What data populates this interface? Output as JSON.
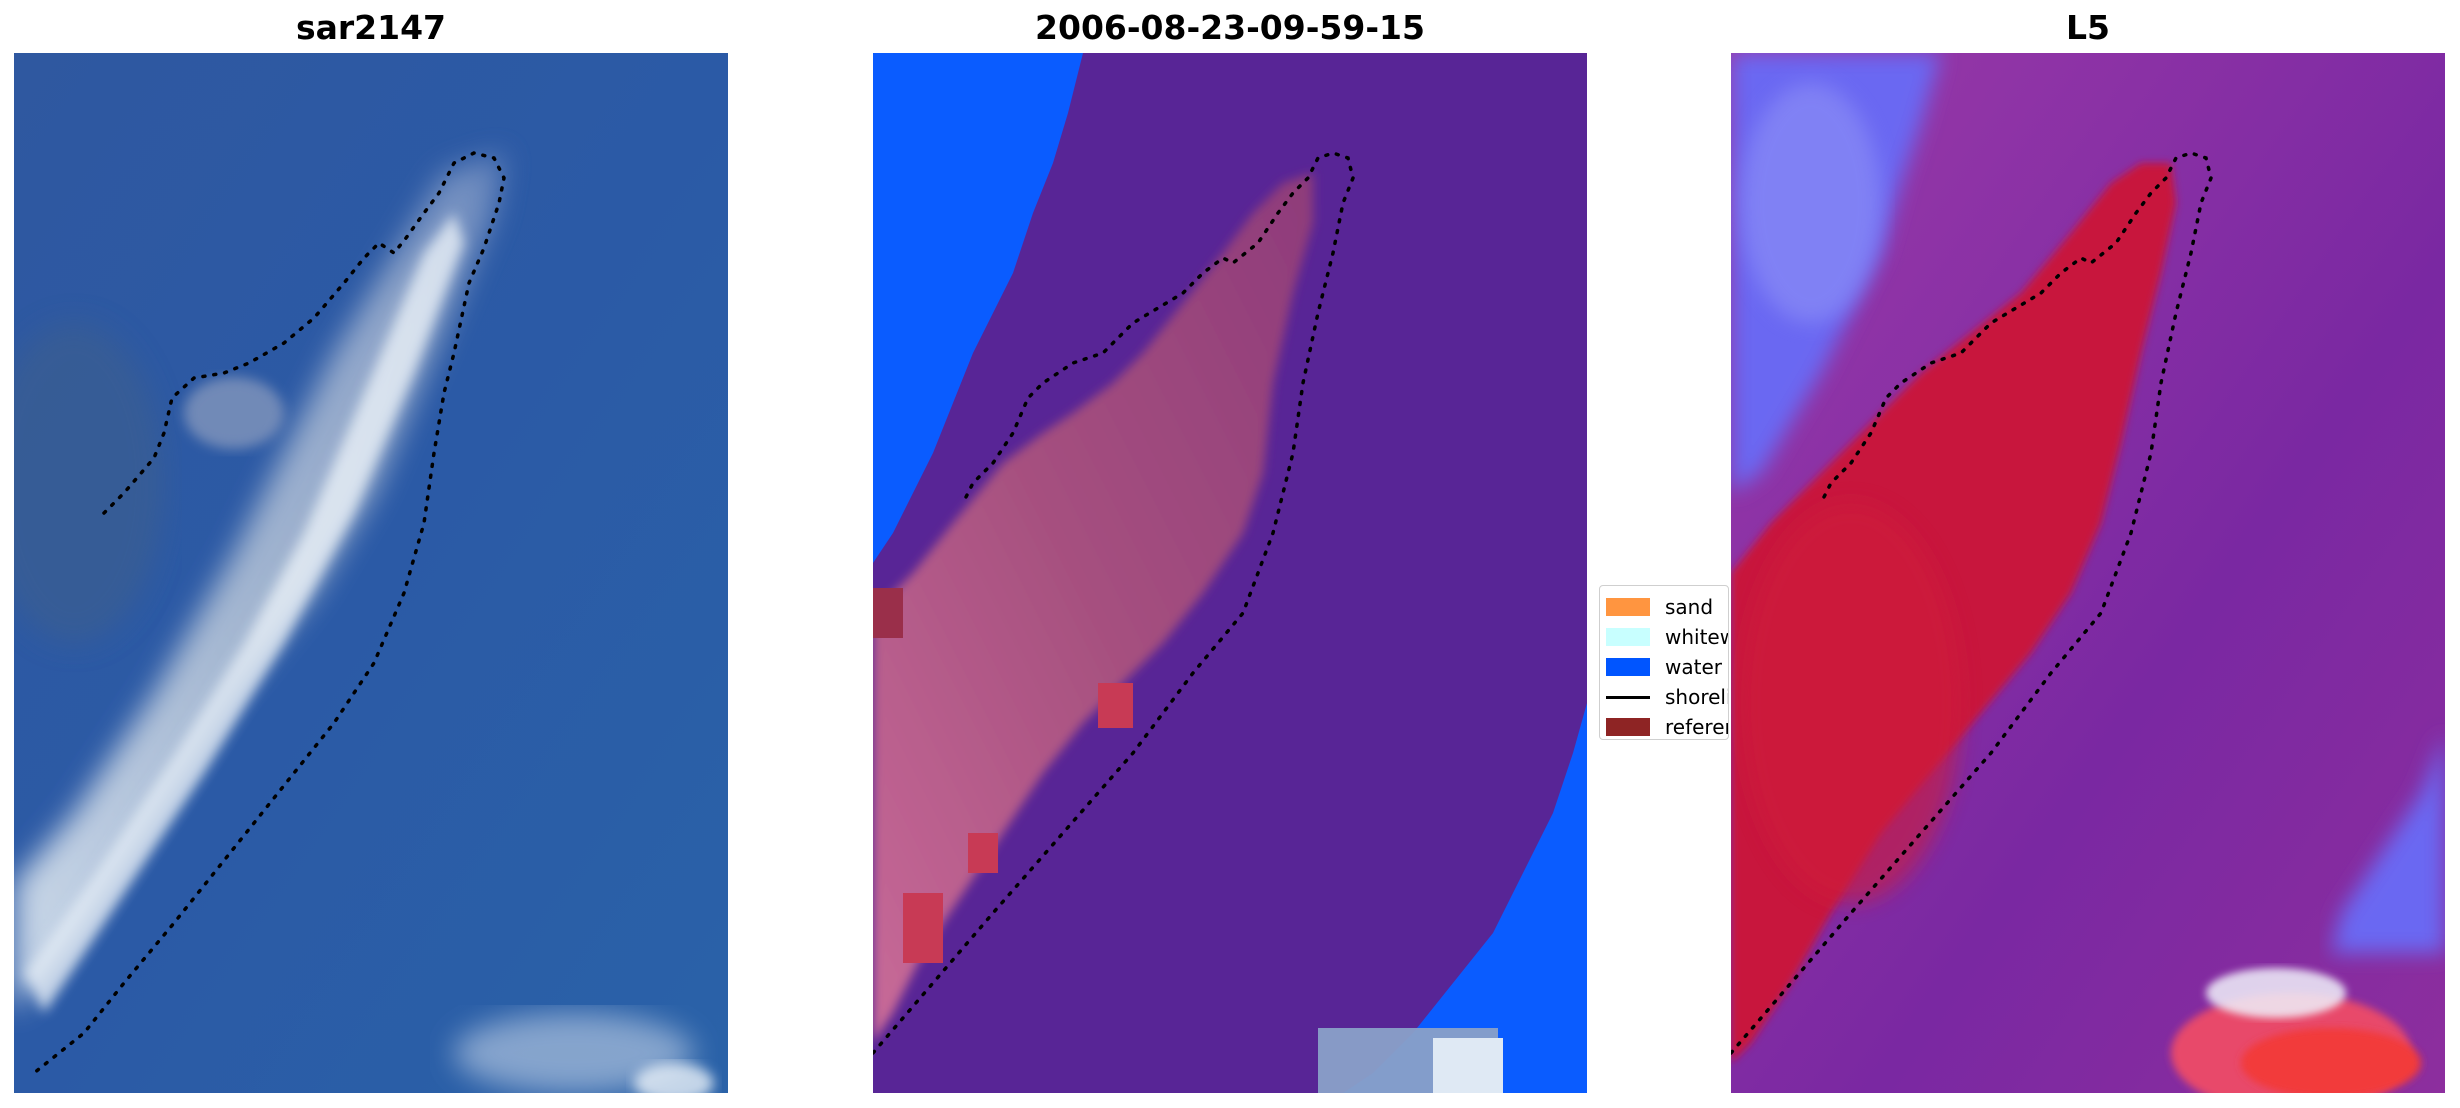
{
  "panels": [
    {
      "title": "sar2147"
    },
    {
      "title": "2006-08-23-09-59-15"
    },
    {
      "title": "L5"
    }
  ],
  "legend": {
    "items": [
      {
        "label": "sand",
        "kind": "patch",
        "color": "#ff9540"
      },
      {
        "label": "whitewater",
        "kind": "patch",
        "color": "#c8ffff"
      },
      {
        "label": "water",
        "kind": "patch",
        "color": "#0055ff"
      },
      {
        "label": "shoreline",
        "kind": "line",
        "color": "#000000"
      },
      {
        "label": "reference",
        "kind": "patch",
        "color": "#8e2424"
      }
    ]
  },
  "colors": {
    "water_class": "#0a5cff",
    "land_class": "#582596",
    "rgb_water": "#2c5da3",
    "index_water": "#8a30a8",
    "index_land": "#c8163e"
  }
}
